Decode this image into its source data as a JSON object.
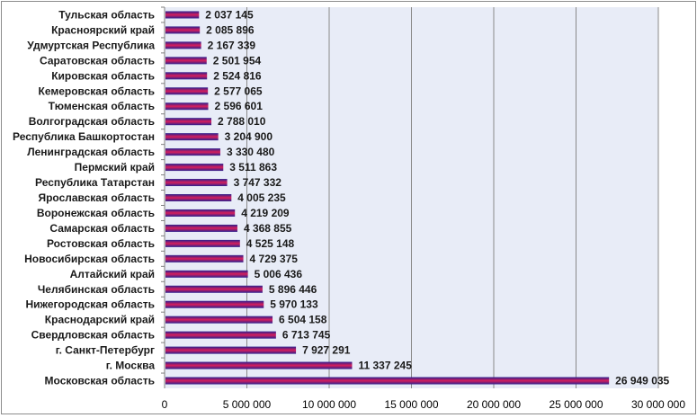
{
  "chart_data": {
    "type": "bar",
    "orientation": "horizontal",
    "title": "",
    "xlabel": "",
    "ylabel": "",
    "xlim": [
      0,
      30000000
    ],
    "x_ticks": [
      0,
      5000000,
      10000000,
      15000000,
      20000000,
      25000000,
      30000000
    ],
    "x_tick_labels": [
      "0",
      "5 000 000",
      "10 000 000",
      "15 000 000",
      "20 000 000",
      "25 000 000",
      "30 000 000"
    ],
    "grid": "vertical",
    "legend": "none",
    "plot_background": "#e8ecf7",
    "bar_colors": {
      "top": "#2a1f8f",
      "middle": "#d81e5b",
      "bottom": "#2a1f8f"
    },
    "categories": [
      "Тульская область",
      "Красноярский край",
      "Удмуртская Республика",
      "Саратовская область",
      "Кировская область",
      "Кемеровская область",
      "Тюменская область",
      "Волгоградская область",
      "Республика Башкортостан",
      "Ленинградская область",
      "Пермский край",
      "Республика Татарстан",
      "Ярославская область",
      "Воронежская область",
      "Самарская область",
      "Ростовская область",
      "Новосибирская область",
      "Алтайский край",
      "Челябинская область",
      "Нижегородская область",
      "Краснодарский край",
      "Свердловская область",
      "г. Санкт-Петербург",
      "г. Москва",
      "Московская область"
    ],
    "values": [
      2037145,
      2085896,
      2167339,
      2501954,
      2524816,
      2577065,
      2596601,
      2788010,
      3204900,
      3330480,
      3511863,
      3747332,
      4005235,
      4219209,
      4368855,
      4525148,
      4729375,
      5006436,
      5896446,
      5970133,
      6504158,
      6713745,
      7927291,
      11337245,
      26949035
    ],
    "value_labels": [
      "2 037 145",
      "2 085 896",
      "2 167 339",
      "2 501 954",
      "2 524 816",
      "2 577 065",
      "2 596 601",
      "2 788 010",
      "3 204 900",
      "3 330 480",
      "3 511 863",
      "3 747 332",
      "4 005 235",
      "4 219 209",
      "4 368 855",
      "4 525 148",
      "4 729 375",
      "5 006 436",
      "5 896 446",
      "5 970 133",
      "6 504 158",
      "6 713 745",
      "7 927 291",
      "11 337 245",
      "26 949 035"
    ]
  }
}
